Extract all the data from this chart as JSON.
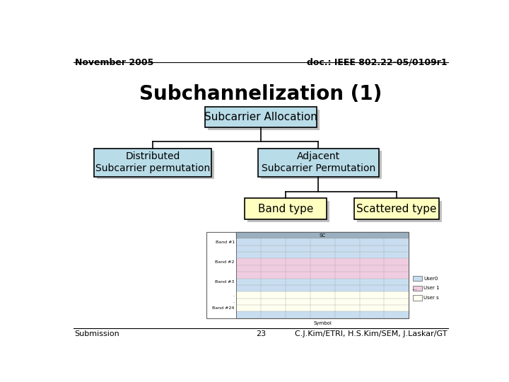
{
  "title": "Subchannelization (1)",
  "header_left": "November 2005",
  "header_right": "doc.: IEEE 802.22-05/0109r1",
  "footer_left": "Submission",
  "footer_center": "23",
  "footer_right": "C.J.Kim/ETRI, H.S.Kim/SEM, J.Laskar/GT",
  "bg_color": "#ffffff",
  "box_root_text": "Subcarrier Allocation",
  "box_root_fill": "#b8dce8",
  "box_left_text": "Distributed\nSubcarrier permutation",
  "box_left_fill": "#b8dce8",
  "box_right_text": "Adjacent\nSubcarrier Permutation",
  "box_right_fill": "#b8dce8",
  "box_band_text": "Band type",
  "box_band_fill": "#ffffc0",
  "box_scatter_text": "Scattered type",
  "box_scatter_fill": "#ffffc0",
  "shadow_color": "#c8c8c8",
  "line_color": "#000000",
  "band_row_colors": [
    "#c8ddf0",
    "#c8ddf0",
    "#c8ddf0",
    "#f0cce0",
    "#f0cce0",
    "#f0cce0",
    "#c8ddf0",
    "#c8ddf0",
    "#fffff0",
    "#fffff0",
    "#fffff0",
    "#c8ddf0"
  ],
  "band_labels": [
    "Band #1",
    "",
    "",
    "Band #2",
    "",
    "",
    "Band #3",
    "",
    ".",
    ".",
    "Band #24",
    ""
  ],
  "legend_items": [
    [
      "#c8ddf0",
      "User0"
    ],
    [
      "#f0cce0",
      "User 1"
    ],
    [
      "#fffff0",
      "User s"
    ]
  ],
  "chart_header_color": "#9ab0c0"
}
